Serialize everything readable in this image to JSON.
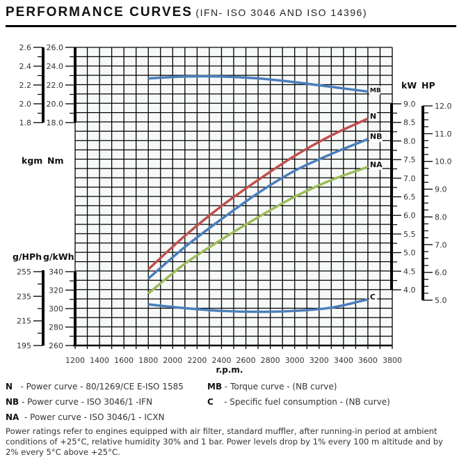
{
  "header": {
    "title": "PERFORMANCE CURVES",
    "subtitle": "(IFN- ISO 3046 AND ISO 14396)"
  },
  "chart_data": {
    "type": "line",
    "title": "PERFORMANCE CURVES",
    "xlabel": "r.p.m.",
    "x_ticks": [
      "1200",
      "1400",
      "1600",
      "1800",
      "2000",
      "2200",
      "2400",
      "2600",
      "2800",
      "3000",
      "3200",
      "3400",
      "3600",
      "3800"
    ],
    "xlim": [
      1200,
      3800
    ],
    "grid": true,
    "axes": {
      "torque_nm": {
        "label": "Nm",
        "ticks": [
          "26.0",
          "24.0",
          "22.0",
          "20.0",
          "18.0"
        ],
        "range": [
          18.0,
          26.0
        ]
      },
      "torque_kgm": {
        "label": "kgm",
        "ticks": [
          "2.6",
          "2.4",
          "2.2",
          "2.0",
          "1.8"
        ],
        "range": [
          1.8,
          2.6
        ]
      },
      "sfc_gkwh": {
        "label": "g/kWh",
        "ticks": [
          "340",
          "320",
          "300",
          "280",
          "260"
        ],
        "range": [
          260,
          340
        ]
      },
      "sfc_ghph": {
        "label": "g/HPh",
        "ticks": [
          "255",
          "235",
          "215",
          "195"
        ],
        "range": [
          195,
          255
        ]
      },
      "power_kw": {
        "label": "kW",
        "ticks": [
          "9.0",
          "8.5",
          "8.0",
          "7.5",
          "7.0",
          "6.5",
          "6.0",
          "5.5",
          "5.0",
          "4.5",
          "4.0"
        ],
        "range": [
          4.0,
          9.0
        ]
      },
      "power_hp": {
        "label": "HP",
        "ticks": [
          "12.0",
          "11.0",
          "10.0",
          "9.0",
          "8.0",
          "7.0",
          "6.0",
          "5.0"
        ],
        "range": [
          5.0,
          12.0
        ]
      }
    },
    "x": [
      1800,
      2100,
      2400,
      2700,
      3000,
      3300,
      3600
    ],
    "series": [
      {
        "name": "MB",
        "axis": "torque_nm",
        "color": "#4a7ebb",
        "values": [
          22.7,
          22.9,
          22.9,
          22.7,
          22.3,
          21.8,
          21.3
        ]
      },
      {
        "name": "N",
        "axis": "power_kw",
        "color": "#c0504d",
        "values": [
          4.55,
          5.45,
          6.25,
          6.95,
          7.6,
          8.15,
          8.6
        ]
      },
      {
        "name": "NB",
        "axis": "power_kw",
        "color": "#4a7ebb",
        "values": [
          4.3,
          5.15,
          5.9,
          6.6,
          7.2,
          7.65,
          8.05
        ]
      },
      {
        "name": "NA",
        "axis": "power_kw",
        "color": "#9bbb59",
        "values": [
          3.9,
          4.7,
          5.35,
          5.95,
          6.5,
          6.95,
          7.3
        ]
      },
      {
        "name": "C",
        "axis": "sfc_gkwh",
        "color": "#4a7ebb",
        "values": [
          304.5,
          300.5,
          297.5,
          296.5,
          297.5,
          301.0,
          310.0
        ]
      }
    ]
  },
  "legend": [
    {
      "key": "N",
      "text": "- Power curve - 80/1269/CE E-ISO 1585"
    },
    {
      "key": "NB",
      "text": "- Power curve - ISO 3046/1 -IFN"
    },
    {
      "key": "NA",
      "text": "- Power curve - ISO 3046/1 - ICXN"
    },
    {
      "key": "MB",
      "text": "- Torque curve - (NB curve)"
    },
    {
      "key": "C",
      "text": "- Specific fuel consumption - (NB curve)"
    }
  ],
  "note": "Power ratings refer to engines equipped with air filter, standard muffler, after running-in period at ambient conditions of +25°C, relative humidity 30% and 1 bar. Power levels drop by 1% every 100 m altitude and by 2% every 5°C above +25°C."
}
